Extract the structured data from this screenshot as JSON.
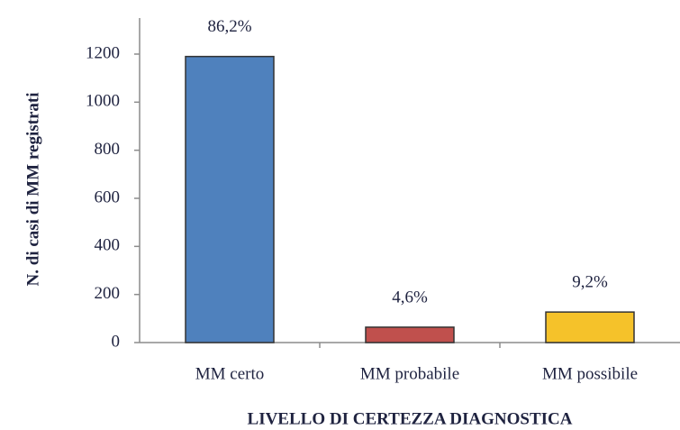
{
  "chart_data": {
    "type": "bar",
    "x_label": "LIVELLO DI CERTEZZA DIAGNOSTICA",
    "y_label": "N. di casi di MM registrati",
    "categories": [
      "MM certo",
      "MM probabile",
      "MM possibile"
    ],
    "values": [
      1190,
      64,
      127
    ],
    "annotations": [
      "86,2%",
      "4,6%",
      "9,2%"
    ],
    "colors": [
      "#4f81bd",
      "#c0504d",
      "#f5c22a"
    ],
    "ylim": [
      0,
      1350
    ],
    "yticks": [
      0,
      200,
      400,
      600,
      800,
      1000,
      1200
    ],
    "grid": false
  }
}
